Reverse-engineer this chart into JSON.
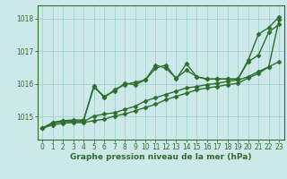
{
  "xlabel": "Graphe pression niveau de la mer (hPa)",
  "background_color": "#cce8e8",
  "plot_bg_color": "#cce8e8",
  "grid_color": "#99cccc",
  "line_color": "#2d6e2d",
  "ylim": [
    1014.3,
    1018.4
  ],
  "xlim": [
    -0.5,
    23.5
  ],
  "yticks": [
    1015,
    1016,
    1017,
    1018
  ],
  "xticks": [
    0,
    1,
    2,
    3,
    4,
    5,
    6,
    7,
    8,
    9,
    10,
    11,
    12,
    13,
    14,
    15,
    16,
    17,
    18,
    19,
    20,
    21,
    22,
    23
  ],
  "series": [
    [
      1014.65,
      1014.82,
      1014.88,
      1014.85,
      1014.88,
      1015.95,
      1015.58,
      1015.82,
      1015.98,
      1016.05,
      1016.12,
      1016.48,
      1016.58,
      1016.15,
      1016.62,
      1016.22,
      1016.15,
      1016.15,
      1016.15,
      1016.15,
      1016.72,
      1017.52,
      1017.72,
      1018.05
    ],
    [
      1014.65,
      1014.82,
      1014.88,
      1014.9,
      1014.9,
      1015.9,
      1015.62,
      1015.78,
      1016.02,
      1015.98,
      1016.12,
      1016.58,
      1016.48,
      1016.18,
      1016.42,
      1016.22,
      1016.15,
      1016.15,
      1016.15,
      1016.15,
      1016.68,
      1016.88,
      1017.58,
      1017.82
    ],
    [
      1014.65,
      1014.8,
      1014.85,
      1014.85,
      1014.85,
      1015.02,
      1015.08,
      1015.12,
      1015.22,
      1015.32,
      1015.48,
      1015.58,
      1015.68,
      1015.78,
      1015.88,
      1015.92,
      1015.98,
      1016.02,
      1016.08,
      1016.12,
      1016.22,
      1016.38,
      1016.52,
      1016.68
    ],
    [
      1014.65,
      1014.75,
      1014.8,
      1014.82,
      1014.82,
      1014.88,
      1014.92,
      1015.02,
      1015.08,
      1015.18,
      1015.28,
      1015.38,
      1015.52,
      1015.62,
      1015.72,
      1015.82,
      1015.88,
      1015.92,
      1015.98,
      1016.02,
      1016.18,
      1016.32,
      1016.52,
      1017.95
    ]
  ],
  "marker": "D",
  "marker_size": 2.5,
  "linewidth": 1.0,
  "tick_fontsize": 5.5,
  "xlabel_fontsize": 6.5
}
